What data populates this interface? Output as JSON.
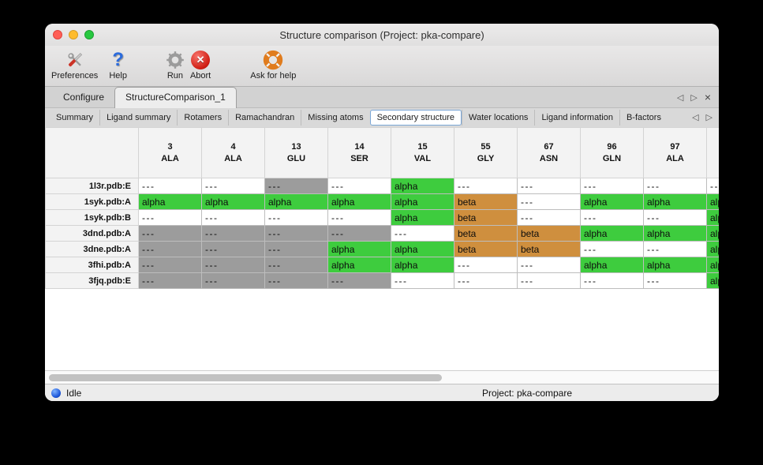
{
  "window": {
    "title": "Structure comparison (Project: pka-compare)"
  },
  "icons": {
    "prev": "◁",
    "next": "▷",
    "close": "×",
    "abort_x": "✕"
  },
  "toolbar": {
    "items": [
      {
        "label": "Preferences",
        "icon": "tools-icon"
      },
      {
        "label": "Help",
        "icon": "question-icon"
      },
      {
        "label": "Run",
        "icon": "gear-icon"
      },
      {
        "label": "Abort",
        "icon": "abort-icon"
      },
      {
        "label": "Ask for help",
        "icon": "life-ring-icon"
      }
    ]
  },
  "tabs": {
    "items": [
      {
        "label": "Configure",
        "selected": false
      },
      {
        "label": "StructureComparison_1",
        "selected": true
      }
    ]
  },
  "subtabs": {
    "items": [
      "Summary",
      "Ligand summary",
      "Rotamers",
      "Ramachandran",
      "Missing atoms",
      "Secondary structure",
      "Water locations",
      "Ligand information",
      "B-factors"
    ],
    "selected": "Secondary structure"
  },
  "table": {
    "columns": [
      {
        "num": "3",
        "res": "ALA"
      },
      {
        "num": "4",
        "res": "ALA"
      },
      {
        "num": "13",
        "res": "GLU"
      },
      {
        "num": "14",
        "res": "SER"
      },
      {
        "num": "15",
        "res": "VAL"
      },
      {
        "num": "55",
        "res": "GLY"
      },
      {
        "num": "67",
        "res": "ASN"
      },
      {
        "num": "96",
        "res": "GLN"
      },
      {
        "num": "97",
        "res": "ALA"
      },
      {
        "num": "",
        "res": ""
      }
    ],
    "rows": [
      {
        "label": "1l3r.pdb:E",
        "cells": [
          "none",
          "none",
          "gap",
          "none",
          "alpha",
          "none",
          "none",
          "none",
          "none",
          "none"
        ]
      },
      {
        "label": "1syk.pdb:A",
        "cells": [
          "alpha",
          "alpha",
          "alpha",
          "alpha",
          "alpha",
          "beta",
          "none",
          "alpha",
          "alpha",
          "alpha"
        ]
      },
      {
        "label": "1syk.pdb:B",
        "cells": [
          "none",
          "none",
          "none",
          "none",
          "alpha",
          "beta",
          "none",
          "none",
          "none",
          "alpha"
        ]
      },
      {
        "label": "3dnd.pdb:A",
        "cells": [
          "gap",
          "gap",
          "gap",
          "gap",
          "none",
          "beta",
          "beta",
          "alpha",
          "alpha",
          "alpha"
        ]
      },
      {
        "label": "3dne.pdb:A",
        "cells": [
          "gap",
          "gap",
          "gap",
          "alpha",
          "alpha",
          "beta",
          "beta",
          "none",
          "none",
          "alpha"
        ]
      },
      {
        "label": "3fhi.pdb:A",
        "cells": [
          "gap",
          "gap",
          "gap",
          "alpha",
          "alpha",
          "none",
          "none",
          "alpha",
          "alpha",
          "alpha"
        ]
      },
      {
        "label": "3fjq.pdb:E",
        "cells": [
          "gap",
          "gap",
          "gap",
          "gap",
          "none",
          "none",
          "none",
          "none",
          "none",
          "alpha"
        ]
      }
    ],
    "cell_text": {
      "alpha": "alpha",
      "beta": "beta",
      "none": "---",
      "gap": "---"
    },
    "cell_colors": {
      "alpha": "#3ecc3e",
      "beta": "#cf8f3e",
      "none": "#ffffff",
      "gap": "#9c9c9c"
    }
  },
  "statusbar": {
    "left": "Idle",
    "right": "Project: pka-compare",
    "indicator_color": "#1a54d8"
  }
}
